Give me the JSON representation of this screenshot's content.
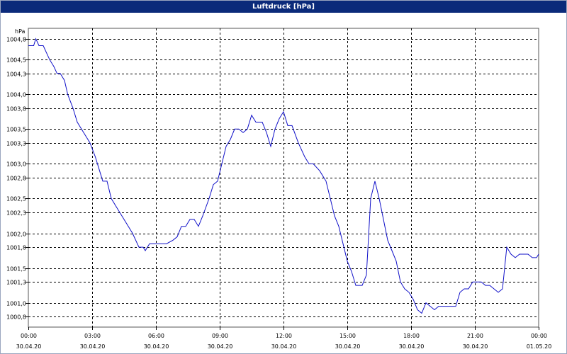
{
  "window": {
    "title": "Luftdruck [hPa]"
  },
  "chart_data": {
    "type": "line",
    "title": "Luftdruck [hPa]",
    "ylabel": "hPa",
    "xlabel": "",
    "ylim": [
      1000.65,
      1004.95
    ],
    "xlim": [
      0,
      24
    ],
    "grid": true,
    "colors": {
      "line": "#1010c8",
      "grid": "#000000",
      "background": "#ffffff",
      "title_bar": "#0b2a7a"
    },
    "y_ticks": [
      "1000,8",
      "1001,0",
      "1001,3",
      "1001,5",
      "1001,8",
      "1002,0",
      "1002,3",
      "1002,5",
      "1002,8",
      "1003,0",
      "1003,3",
      "1003,5",
      "1003,8",
      "1004,0",
      "1004,3",
      "1004,5",
      "1004,8"
    ],
    "y_tick_values": [
      1000.8,
      1001.0,
      1001.3,
      1001.5,
      1001.8,
      1002.0,
      1002.3,
      1002.5,
      1002.8,
      1003.0,
      1003.3,
      1003.5,
      1003.8,
      1004.0,
      1004.3,
      1004.5,
      1004.8
    ],
    "x_ticks": [
      {
        "time": "00:00",
        "date": "30.04.20"
      },
      {
        "time": "03:00",
        "date": "30.04.20"
      },
      {
        "time": "06:00",
        "date": "30.04.20"
      },
      {
        "time": "09:00",
        "date": "30.04.20"
      },
      {
        "time": "12:00",
        "date": "30.04.20"
      },
      {
        "time": "15:00",
        "date": "30.04.20"
      },
      {
        "time": "18:00",
        "date": "30.04.20"
      },
      {
        "time": "21:00",
        "date": "30.04.20"
      },
      {
        "time": "00:00",
        "date": "01.05.20"
      }
    ],
    "series": [
      {
        "x": [
          0.0,
          0.25,
          0.35,
          0.5,
          0.7,
          1.0,
          1.2,
          1.35,
          1.5,
          1.7,
          1.85,
          2.1,
          2.3,
          2.6,
          2.9,
          3.15,
          3.35,
          3.5,
          3.7,
          3.9,
          4.2,
          4.5,
          4.9,
          5.2,
          5.4,
          5.5,
          5.7,
          6.0,
          6.3,
          6.5,
          6.8,
          7.0,
          7.2,
          7.4,
          7.6,
          7.8,
          8.0,
          8.2,
          8.5,
          8.7,
          8.9,
          9.1,
          9.3,
          9.5,
          9.7,
          9.9,
          10.1,
          10.3,
          10.5,
          10.7,
          11.0,
          11.2,
          11.4,
          11.6,
          11.8,
          12.0,
          12.2,
          12.4,
          12.7,
          13.0,
          13.2,
          13.4,
          13.7,
          14.0,
          14.2,
          14.4,
          14.6,
          14.8,
          15.0,
          15.2,
          15.4,
          15.7,
          15.9,
          16.1,
          16.3,
          16.5,
          16.7,
          16.9,
          17.1,
          17.3,
          17.5,
          17.7,
          17.9,
          18.1,
          18.3,
          18.5,
          18.7,
          18.9,
          19.1,
          19.3,
          19.5,
          19.7,
          19.9,
          20.1,
          20.3,
          20.5,
          20.7,
          20.9,
          21.1,
          21.3,
          21.5,
          21.7,
          21.9,
          22.1,
          22.3,
          22.5,
          22.7,
          22.9,
          23.1,
          23.3,
          23.5,
          23.7,
          23.9,
          24.0
        ],
        "y": [
          1004.7,
          1004.7,
          1004.8,
          1004.7,
          1004.7,
          1004.5,
          1004.4,
          1004.3,
          1004.3,
          1004.2,
          1004.0,
          1003.8,
          1003.6,
          1003.45,
          1003.3,
          1003.1,
          1002.9,
          1002.75,
          1002.75,
          1002.5,
          1002.35,
          1002.2,
          1002.0,
          1001.8,
          1001.8,
          1001.75,
          1001.85,
          1001.85,
          1001.85,
          1001.85,
          1001.9,
          1001.95,
          1002.1,
          1002.1,
          1002.2,
          1002.2,
          1002.1,
          1002.25,
          1002.5,
          1002.7,
          1002.75,
          1003.0,
          1003.25,
          1003.35,
          1003.5,
          1003.5,
          1003.45,
          1003.5,
          1003.7,
          1003.6,
          1003.6,
          1003.45,
          1003.25,
          1003.5,
          1003.65,
          1003.75,
          1003.55,
          1003.55,
          1003.3,
          1003.1,
          1003.0,
          1003.0,
          1002.9,
          1002.75,
          1002.5,
          1002.25,
          1002.1,
          1001.85,
          1001.6,
          1001.45,
          1001.25,
          1001.25,
          1001.4,
          1002.5,
          1002.75,
          1002.5,
          1002.2,
          1001.9,
          1001.75,
          1001.6,
          1001.3,
          1001.2,
          1001.15,
          1001.05,
          1000.9,
          1000.85,
          1001.0,
          1000.95,
          1000.9,
          1000.95,
          1000.95,
          1000.95,
          1000.95,
          1000.95,
          1001.15,
          1001.2,
          1001.2,
          1001.3,
          1001.3,
          1001.3,
          1001.25,
          1001.25,
          1001.2,
          1001.15,
          1001.2,
          1001.8,
          1001.7,
          1001.65,
          1001.7,
          1001.7,
          1001.7,
          1001.65,
          1001.65,
          1001.7
        ]
      }
    ]
  }
}
